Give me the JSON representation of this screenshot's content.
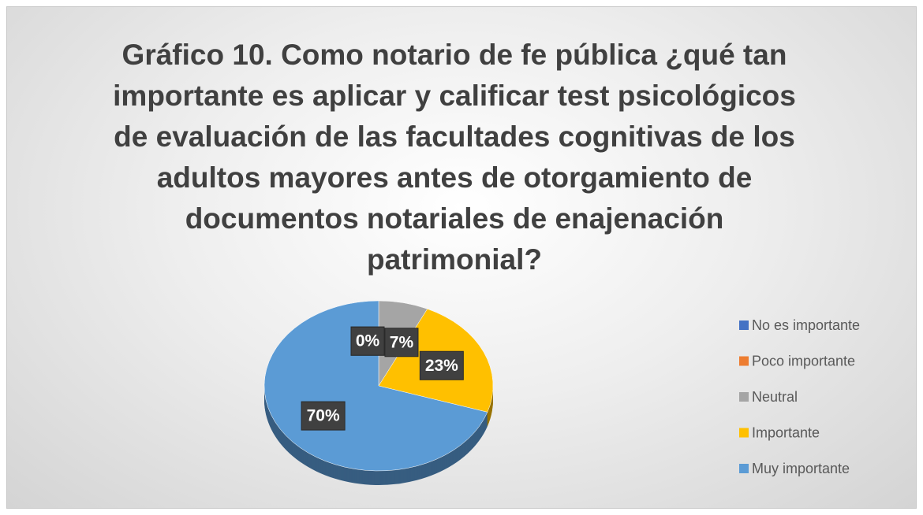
{
  "chart_data": {
    "type": "pie",
    "title": "Gráfico 10. Como notario de fe pública ¿qué tan importante es aplicar y calificar test psicológicos de evaluación de las facultades cognitivas de los adultos mayores antes de otorgamiento de documentos notariales de enajenación patrimonial?",
    "categories": [
      "No es importante",
      "Poco importante",
      "Neutral",
      "Importante",
      "Muy importante"
    ],
    "values": [
      0,
      0,
      7,
      23,
      70
    ],
    "value_labels": [
      "0%",
      "0%",
      "7%",
      "23%",
      "70%"
    ],
    "colors": [
      "#4472c4",
      "#ed7d31",
      "#a5a5a5",
      "#ffc000",
      "#5b9bd5"
    ],
    "legend": "right"
  }
}
